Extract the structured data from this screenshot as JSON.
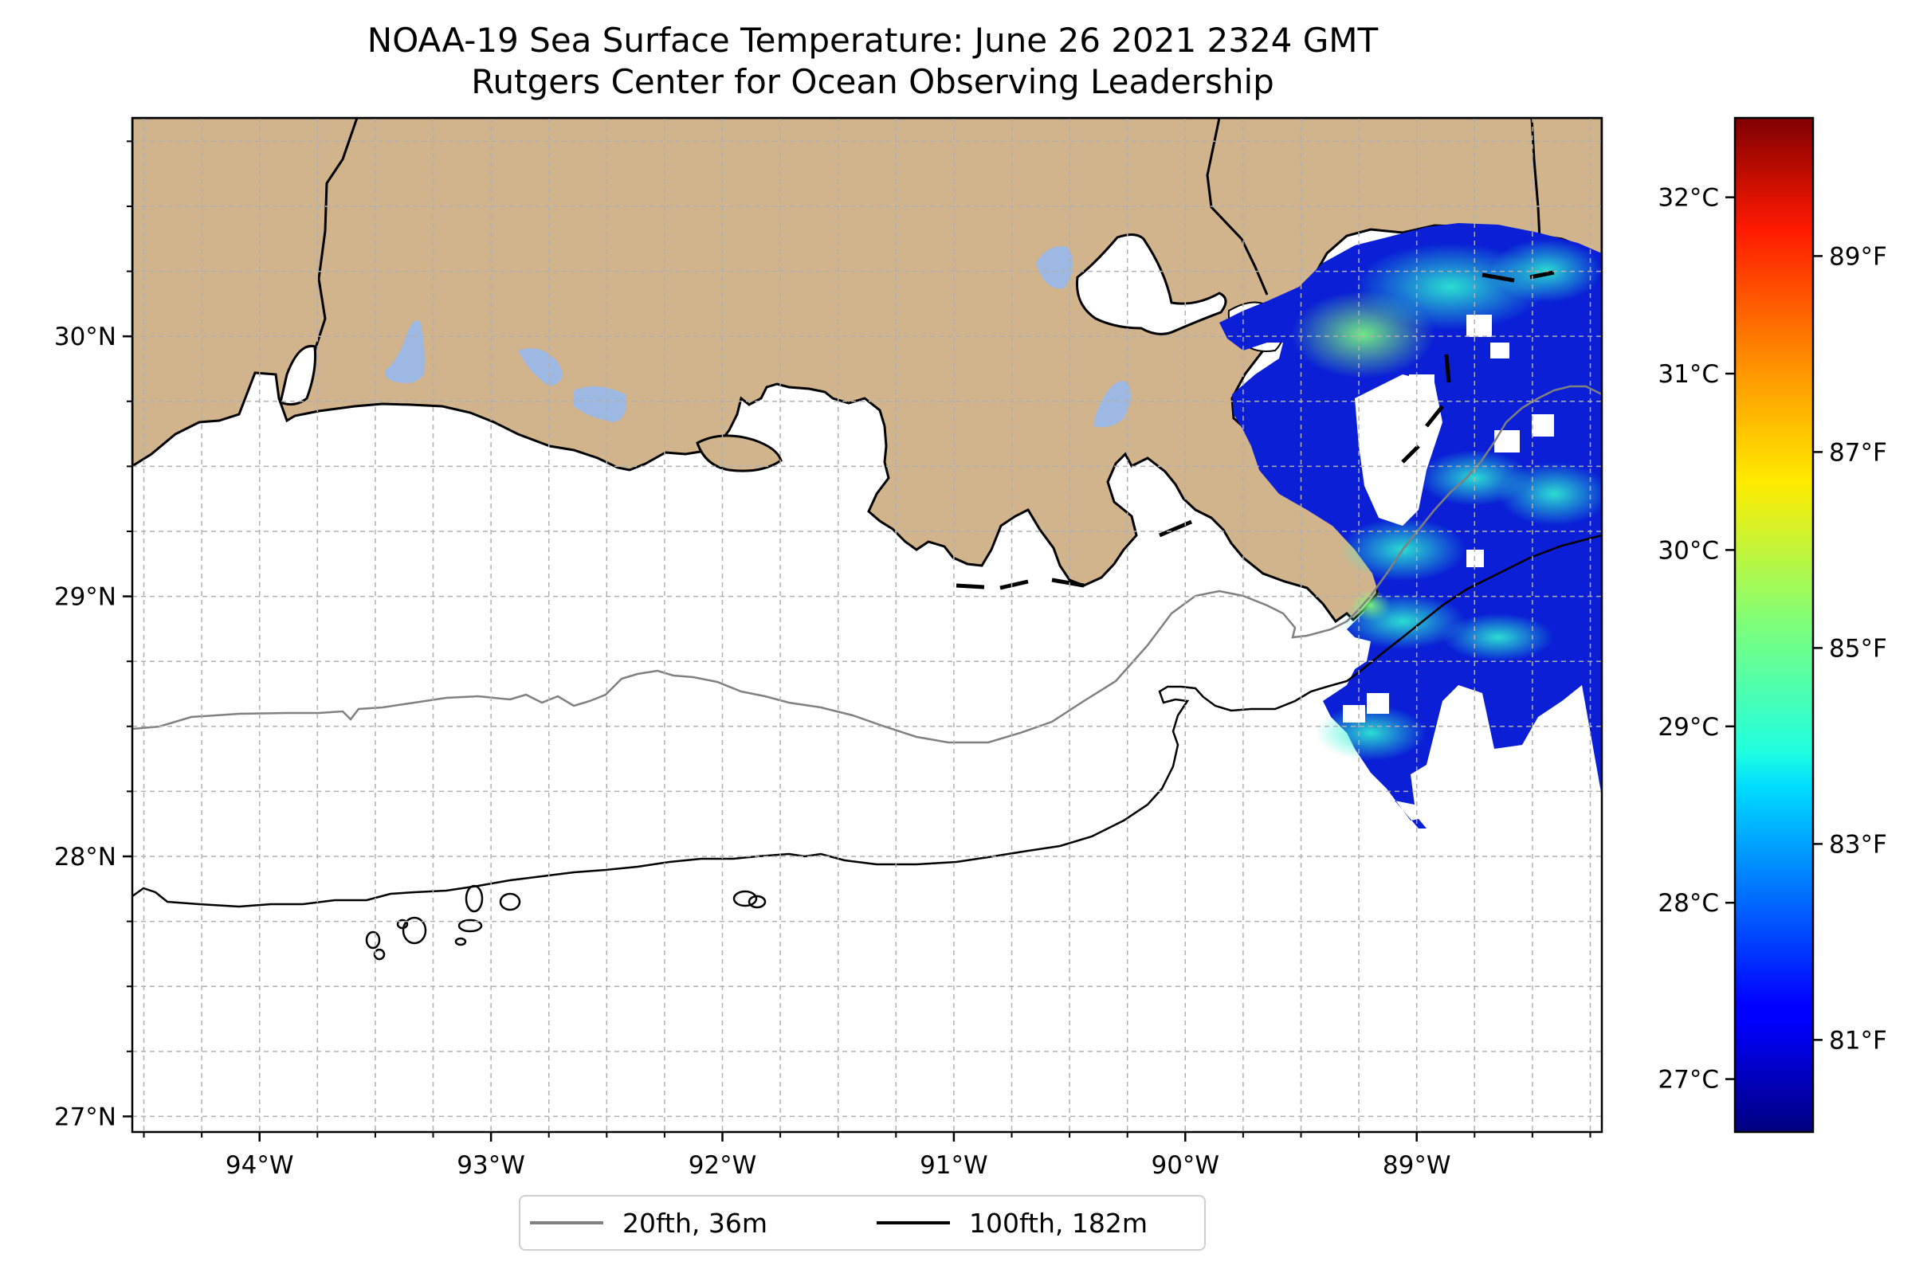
{
  "title": "NOAA-19 Sea Surface Temperature: June 26 2021 2324 GMT",
  "subtitle": "Rutgers Center for Ocean Observing Leadership",
  "map": {
    "extent": {
      "lon_min": -94.55,
      "lon_max": -88.2,
      "lat_min": 26.94,
      "lat_max": 30.84
    },
    "lon_ticks": [
      {
        "value": -94,
        "label": "94°W"
      },
      {
        "value": -93,
        "label": "93°W"
      },
      {
        "value": -92,
        "label": "92°W"
      },
      {
        "value": -91,
        "label": "91°W"
      },
      {
        "value": -90,
        "label": "90°W"
      },
      {
        "value": -89,
        "label": "89°W"
      }
    ],
    "lat_ticks": [
      {
        "value": 27,
        "label": "27°N"
      },
      {
        "value": 28,
        "label": "28°N"
      },
      {
        "value": 29,
        "label": "29°N"
      },
      {
        "value": 30,
        "label": "30°N"
      }
    ],
    "grid": true,
    "colors": {
      "land": "#d2b48c",
      "lakes": "#9db8e3",
      "ocean": "#ffffff",
      "isobath_20": "#808080",
      "isobath_100": "#000000"
    }
  },
  "colorbar": {
    "colormap": "jet",
    "range_c": [
      26.7,
      32.45
    ],
    "celsius_ticks": [
      {
        "value": 27,
        "label": "27°C"
      },
      {
        "value": 28,
        "label": "28°C"
      },
      {
        "value": 29,
        "label": "29°C"
      },
      {
        "value": 30,
        "label": "30°C"
      },
      {
        "value": 31,
        "label": "31°C"
      },
      {
        "value": 32,
        "label": "32°C"
      }
    ],
    "fahrenheit_ticks": [
      {
        "value": 81,
        "label": "81°F"
      },
      {
        "value": 83,
        "label": "83°F"
      },
      {
        "value": 85,
        "label": "85°F"
      },
      {
        "value": 87,
        "label": "87°F"
      },
      {
        "value": 89,
        "label": "89°F"
      }
    ]
  },
  "legend": {
    "items": [
      {
        "label": "20fth, 36m",
        "color": "#808080"
      },
      {
        "label": "100fth, 182m",
        "color": "#000000"
      }
    ]
  }
}
